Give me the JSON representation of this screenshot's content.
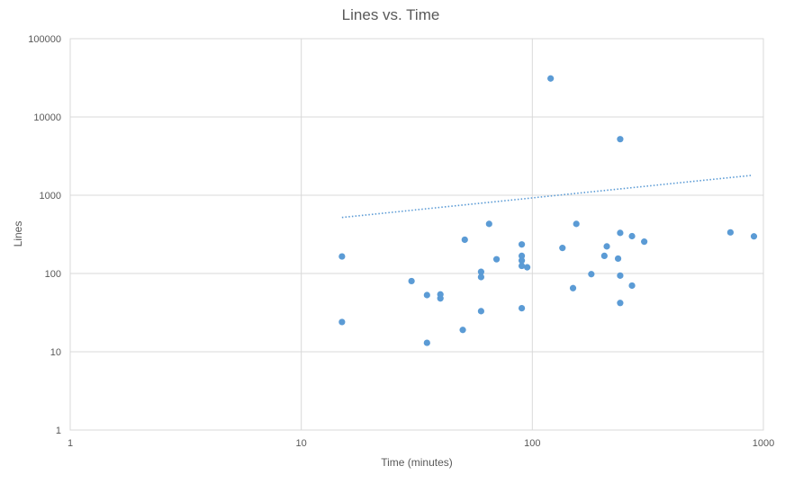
{
  "chart_data": {
    "type": "scatter",
    "title": "Lines vs. Time",
    "xlabel": "Time (minutes)",
    "ylabel": "Lines",
    "x_scale": "log",
    "y_scale": "log",
    "xlim": [
      1,
      1000
    ],
    "ylim": [
      1,
      100000
    ],
    "x_ticks": [
      "1",
      "10",
      "100",
      "1000"
    ],
    "y_ticks": [
      "1",
      "10",
      "100",
      "1000",
      "10000",
      "100000"
    ],
    "grid": true,
    "legend": "none",
    "marker_color": "#5B9BD5",
    "trendline": {
      "style": "dotted",
      "color": "#5B9BD5",
      "x_range": [
        15,
        900
      ],
      "y_start": 520,
      "y_end": 1800
    },
    "series": [
      {
        "points": [
          {
            "x": 15,
            "y": 165
          },
          {
            "x": 15,
            "y": 24
          },
          {
            "x": 30,
            "y": 80
          },
          {
            "x": 35,
            "y": 53
          },
          {
            "x": 35,
            "y": 13
          },
          {
            "x": 40,
            "y": 54
          },
          {
            "x": 40,
            "y": 48
          },
          {
            "x": 50,
            "y": 19
          },
          {
            "x": 51,
            "y": 270
          },
          {
            "x": 60,
            "y": 105
          },
          {
            "x": 60,
            "y": 90
          },
          {
            "x": 60,
            "y": 33
          },
          {
            "x": 65,
            "y": 430
          },
          {
            "x": 70,
            "y": 152
          },
          {
            "x": 90,
            "y": 235
          },
          {
            "x": 90,
            "y": 168
          },
          {
            "x": 90,
            "y": 146
          },
          {
            "x": 90,
            "y": 125
          },
          {
            "x": 90,
            "y": 36
          },
          {
            "x": 95,
            "y": 120
          },
          {
            "x": 120,
            "y": 31000
          },
          {
            "x": 135,
            "y": 212
          },
          {
            "x": 150,
            "y": 65
          },
          {
            "x": 155,
            "y": 430
          },
          {
            "x": 180,
            "y": 98
          },
          {
            "x": 205,
            "y": 168
          },
          {
            "x": 210,
            "y": 222
          },
          {
            "x": 235,
            "y": 155
          },
          {
            "x": 240,
            "y": 5200
          },
          {
            "x": 240,
            "y": 330
          },
          {
            "x": 240,
            "y": 94
          },
          {
            "x": 240,
            "y": 42
          },
          {
            "x": 270,
            "y": 300
          },
          {
            "x": 270,
            "y": 70
          },
          {
            "x": 305,
            "y": 255
          },
          {
            "x": 720,
            "y": 335
          },
          {
            "x": 910,
            "y": 298
          }
        ]
      }
    ]
  }
}
